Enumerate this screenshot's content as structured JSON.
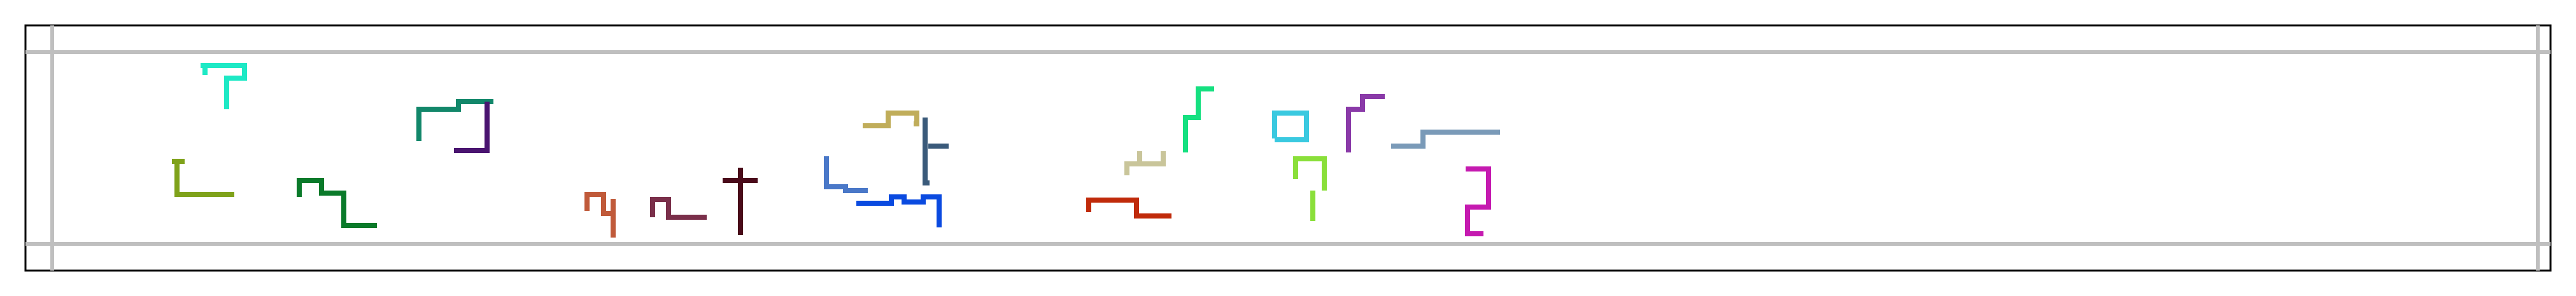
{
  "frame": {
    "border_color": "#000000",
    "grid_color": "#bfbfbf"
  },
  "shapes": [
    {
      "name": "turquoise-t-glyph",
      "color": "#1de9c5"
    },
    {
      "name": "olive-l-glyph",
      "color": "#7fa21a"
    },
    {
      "name": "green-step-glyph",
      "color": "#0a7a2a"
    },
    {
      "name": "teal-hook-glyph",
      "color": "#12876a"
    },
    {
      "name": "purple-hook-glyph",
      "color": "#4a1470"
    },
    {
      "name": "rust-zigzag-glyph",
      "color": "#c05a3a"
    },
    {
      "name": "maroon-hook-glyph",
      "color": "#7a2f4a"
    },
    {
      "name": "dark-cross-glyph",
      "color": "#4a0a1a"
    },
    {
      "name": "blue-l-glyph",
      "color": "#4a78c8"
    },
    {
      "name": "khaki-step-glyph",
      "color": "#c0ad5a"
    },
    {
      "name": "slate-bracket-glyph",
      "color": "#3a5a7a"
    },
    {
      "name": "blue-wave-glyph",
      "color": "#0a4ae0"
    },
    {
      "name": "red-step-glyph",
      "color": "#c02a0a"
    },
    {
      "name": "beige-fork-glyph",
      "color": "#c9c59a"
    },
    {
      "name": "spring-green-glyph",
      "color": "#15e080"
    },
    {
      "name": "cyan-square-glyph",
      "color": "#3ac9e0"
    },
    {
      "name": "lime-hook-glyph",
      "color": "#8adf3a"
    },
    {
      "name": "violet-bracket-glyph",
      "color": "#8a3aa8"
    },
    {
      "name": "steel-line-glyph",
      "color": "#7a9ab8"
    },
    {
      "name": "magenta-s-glyph",
      "color": "#c51ab0"
    }
  ]
}
